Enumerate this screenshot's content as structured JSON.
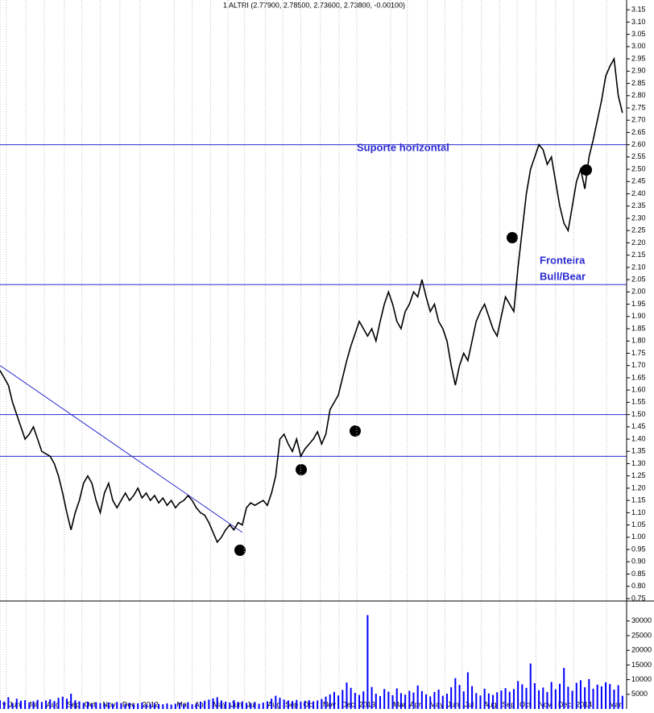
{
  "chart_data": [
    {
      "type": "line",
      "title": "1 ALTRI (2.77900, 2.78500, 2.73600, 2.73800, -0.00100)",
      "xlim": [
        0,
        150
      ],
      "ylim": [
        0.74,
        3.19
      ],
      "grid": true,
      "yticks": [
        0.75,
        {
          "value": 0.8,
          "label": "0.80"
        },
        0.85,
        {
          "value": 0.9,
          "label": "0.90"
        },
        0.95,
        {
          "value": 1,
          "label": "1.00"
        },
        1.05,
        {
          "value": 1.1,
          "label": "1.10"
        },
        1.15,
        {
          "value": 1.2,
          "label": "1.20"
        },
        1.25,
        {
          "value": 1.3,
          "label": "1.30"
        },
        1.35,
        {
          "value": 1.4,
          "label": "1.40"
        },
        1.45,
        {
          "value": 1.5,
          "label": "1.50"
        },
        1.55,
        {
          "value": 1.6,
          "label": "1.60"
        },
        1.65,
        {
          "value": 1.7,
          "label": "1.70"
        },
        1.75,
        {
          "value": 1.8,
          "label": "1.80"
        },
        1.85,
        {
          "value": 1.9,
          "label": "1.90"
        },
        1.95,
        {
          "value": 2,
          "label": "2.00"
        },
        2.05,
        {
          "value": 2.1,
          "label": "2.10"
        },
        2.15,
        {
          "value": 2.2,
          "label": "2.20"
        },
        2.25,
        {
          "value": 2.3,
          "label": "2.30"
        },
        2.35,
        {
          "value": 2.4,
          "label": "2.40"
        },
        2.45,
        {
          "value": 2.5,
          "label": "2.50"
        },
        2.55,
        {
          "value": 2.6,
          "label": "2.60"
        },
        2.65,
        {
          "value": 2.7,
          "label": "2.70"
        },
        2.75,
        {
          "value": 2.8,
          "label": "2.80"
        },
        2.85,
        {
          "value": 2.9,
          "label": "2.90"
        },
        2.95,
        {
          "value": 3,
          "label": "3.00"
        },
        3.05,
        {
          "value": 3.1,
          "label": "3.10"
        },
        3.15
      ],
      "series": [
        {
          "name": "ALTRI",
          "color": "#000000",
          "values": [
            1.68,
            1.65,
            1.62,
            1.55,
            1.5,
            1.45,
            1.4,
            1.42,
            1.45,
            1.4,
            1.35,
            1.34,
            1.33,
            1.3,
            1.25,
            1.18,
            1.1,
            1.03,
            1.1,
            1.15,
            1.22,
            1.25,
            1.22,
            1.15,
            1.1,
            1.18,
            1.22,
            1.15,
            1.12,
            1.15,
            1.18,
            1.15,
            1.17,
            1.2,
            1.16,
            1.18,
            1.15,
            1.17,
            1.14,
            1.16,
            1.13,
            1.15,
            1.12,
            1.14,
            1.15,
            1.17,
            1.15,
            1.12,
            1.1,
            1.09,
            1.06,
            1.02,
            0.98,
            1.0,
            1.03,
            1.05,
            1.03,
            1.06,
            1.05,
            1.12,
            1.14,
            1.13,
            1.14,
            1.15,
            1.13,
            1.18,
            1.25,
            1.4,
            1.42,
            1.38,
            1.35,
            1.4,
            1.33,
            1.36,
            1.38,
            1.4,
            1.43,
            1.38,
            1.42,
            1.52,
            1.55,
            1.58,
            1.65,
            1.72,
            1.78,
            1.83,
            1.88,
            1.85,
            1.82,
            1.85,
            1.8,
            1.88,
            1.95,
            2.0,
            1.95,
            1.88,
            1.85,
            1.92,
            1.95,
            2.0,
            1.98,
            2.05,
            1.98,
            1.92,
            1.95,
            1.88,
            1.85,
            1.8,
            1.7,
            1.62,
            1.7,
            1.75,
            1.72,
            1.8,
            1.88,
            1.92,
            1.95,
            1.9,
            1.85,
            1.82,
            1.9,
            1.98,
            1.95,
            1.92,
            2.1,
            2.25,
            2.4,
            2.5,
            2.55,
            2.6,
            2.58,
            2.52,
            2.55,
            2.45,
            2.35,
            2.28,
            2.25,
            2.35,
            2.45,
            2.5,
            2.42,
            2.55,
            2.62,
            2.7,
            2.78,
            2.88,
            2.92,
            2.95,
            2.8,
            2.73
          ]
        }
      ],
      "hlines": [
        {
          "value": 2.6,
          "label": [
            "Suporte horizontal"
          ]
        },
        {
          "value": 2.03,
          "label": [
            "Fronteira",
            "Bull/Bear"
          ]
        },
        {
          "value": 1.5
        },
        {
          "value": 1.33
        }
      ],
      "trendline": {
        "x": [
          0,
          58
        ],
        "y": [
          1.7,
          1.02
        ]
      },
      "line_color": "#2a2ad0"
    },
    {
      "type": "bar",
      "xlim": [
        0,
        150
      ],
      "ylim": [
        0,
        36800
      ],
      "color": "#0000ff",
      "yticks": [
        5000,
        10000,
        15000,
        20000,
        25000,
        30000
      ],
      "xticks": [
        {
          "value": 0,
          "label": "y"
        },
        {
          "value": 1.5,
          "label": "Jun"
        },
        {
          "value": 6.2,
          "label": "Jul"
        },
        {
          "value": 10.6,
          "label": "Aug"
        },
        {
          "value": 15.4,
          "label": "Sep"
        },
        {
          "value": 19.6,
          "label": "Oct"
        },
        {
          "value": 24,
          "label": "Nov"
        },
        {
          "value": 28.7,
          "label": "Dec"
        },
        {
          "value": 33.5,
          "label": "2012"
        },
        {
          "value": 41.7,
          "label": "Mar"
        },
        {
          "value": 46,
          "label": "Apr"
        },
        {
          "value": 50.4,
          "label": "May"
        },
        {
          "value": 54.6,
          "label": "Jun"
        },
        {
          "value": 58.5,
          "label": "Jul"
        },
        {
          "value": 63.5,
          "label": "Aug"
        },
        {
          "value": 67.7,
          "label": "Sep"
        },
        {
          "value": 72,
          "label": "Oct"
        },
        {
          "value": 76.7,
          "label": "Nov"
        },
        {
          "value": 81.2,
          "label": "Dec"
        },
        {
          "value": 85.4,
          "label": "2013"
        },
        {
          "value": 93.5,
          "label": "Mar"
        },
        {
          "value": 97.5,
          "label": "Apr"
        },
        {
          "value": 102.3,
          "label": "May"
        },
        {
          "value": 106.5,
          "label": "Jun"
        },
        {
          "value": 110.6,
          "label": "Jul"
        },
        {
          "value": 115.2,
          "label": "Aug"
        },
        {
          "value": 119.6,
          "label": "Sep"
        },
        {
          "value": 123.8,
          "label": "Oct"
        },
        {
          "value": 128.3,
          "label": "Nov"
        },
        {
          "value": 133,
          "label": "Dec"
        },
        {
          "value": 137.3,
          "label": "2014"
        },
        {
          "value": 145.2,
          "label": "Mar"
        }
      ],
      "values": [
        3000,
        2500,
        4000,
        2000,
        3500,
        2800,
        3000,
        2200,
        2600,
        3100,
        2400,
        2900,
        3300,
        2700,
        3800,
        4200,
        3500,
        5200,
        3000,
        2600,
        2100,
        2500,
        1800,
        2300,
        2000,
        1900,
        2200,
        1700,
        2400,
        2000,
        1800,
        2100,
        1600,
        1900,
        2200,
        1500,
        1800,
        2000,
        1700,
        1600,
        1900,
        1500,
        1800,
        2100,
        1700,
        2300,
        1600,
        1900,
        2500,
        2800,
        3200,
        3600,
        4000,
        2900,
        2500,
        2200,
        3000,
        2400,
        2600,
        2100,
        2000,
        2300,
        1800,
        2200,
        2600,
        3500,
        4500,
        3800,
        3200,
        2900,
        2700,
        3100,
        2500,
        2800,
        3000,
        2600,
        2900,
        3400,
        4200,
        5000,
        5800,
        4600,
        6500,
        9000,
        7200,
        5500,
        4800,
        6000,
        32000,
        7500,
        5200,
        4400,
        6800,
        5900,
        4700,
        7000,
        5400,
        4900,
        6200,
        5600,
        8000,
        6100,
        5000,
        4300,
        5800,
        6600,
        4500,
        5200,
        7400,
        10500,
        8200,
        6000,
        12500,
        7800,
        5400,
        4600,
        6900,
        5300,
        4800,
        5700,
        6300,
        7100,
        5900,
        6800,
        9500,
        8400,
        7200,
        15500,
        8800,
        6400,
        7300,
        5800,
        9200,
        6700,
        8600,
        14000,
        7600,
        6200,
        8900,
        9800,
        7400,
        10200,
        6900,
        8300,
        7700,
        9100,
        8500,
        6600,
        8100,
        4500
      ]
    }
  ]
}
